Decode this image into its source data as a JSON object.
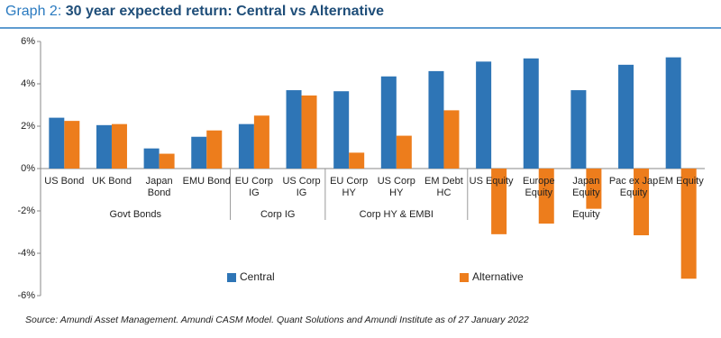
{
  "title_label": "Graph 2:",
  "chart_data": {
    "type": "bar",
    "title": "30 year expected return: Central vs Alternative",
    "groups": [
      {
        "name": "Govt Bonds",
        "categories": [
          "US Bond",
          "UK Bond",
          "Japan\nBond",
          "EMU Bond"
        ]
      },
      {
        "name": "Corp IG",
        "categories": [
          "EU Corp\nIG",
          "US Corp\nIG"
        ]
      },
      {
        "name": "Corp HY & EMBI",
        "categories": [
          "EU Corp\nHY",
          "US Corp\nHY",
          "EM Debt\nHC"
        ]
      },
      {
        "name": "Equity",
        "categories": [
          "US Equity",
          "Europe\nEquity",
          "Japan\nEquity",
          "Pac ex Jap\nEquity",
          "EM Equity"
        ]
      }
    ],
    "series": [
      {
        "name": "Central",
        "color": "#2e75b6",
        "values": [
          2.4,
          2.05,
          0.95,
          1.5,
          2.1,
          3.7,
          3.65,
          4.35,
          4.6,
          5.05,
          5.2,
          3.7,
          4.9,
          5.25
        ]
      },
      {
        "name": "Alternative",
        "color": "#ed7d1c",
        "values": [
          2.25,
          2.1,
          0.7,
          1.8,
          2.5,
          3.45,
          0.75,
          1.55,
          2.75,
          -3.1,
          -2.6,
          -1.9,
          -3.15,
          -5.2
        ]
      }
    ],
    "ylim": [
      -6,
      6
    ],
    "yticks": [
      {
        "value": -6,
        "label": "-6%"
      },
      {
        "value": -4,
        "label": "-4%"
      },
      {
        "value": -2,
        "label": "-2%"
      },
      {
        "value": 0,
        "label": "0%"
      },
      {
        "value": 2,
        "label": "2%"
      },
      {
        "value": 4,
        "label": "4%"
      },
      {
        "value": 6,
        "label": "6%"
      }
    ],
    "source": "Source:  Amundi Asset Management. Amundi CASM Model. Quant Solutions and Amundi Institute as of 27 January 2022"
  }
}
